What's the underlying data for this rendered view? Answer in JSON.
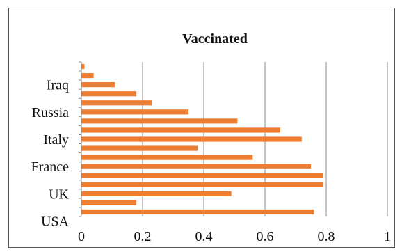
{
  "chart_data": {
    "type": "bar",
    "orientation": "horizontal",
    "title": "Vaccinated",
    "xlabel": "",
    "ylabel": "",
    "xlim": [
      0,
      1
    ],
    "xticks": [
      0,
      0.2,
      0.4,
      0.6,
      0.8,
      1
    ],
    "xtick_labels": [
      "0",
      "0.2",
      "0.4",
      "0.6",
      "0.8",
      "1"
    ],
    "grid": "vertical",
    "legend": "none",
    "bar_color": "#ED7D31",
    "y_labels": [
      {
        "label": "Iraq",
        "at_bar": 2
      },
      {
        "label": "Russia",
        "at_bar": 5
      },
      {
        "label": "Italy",
        "at_bar": 8
      },
      {
        "label": "France",
        "at_bar": 11
      },
      {
        "label": "UK",
        "at_bar": 14
      },
      {
        "label": "USA",
        "at_bar": 17
      }
    ],
    "values_top_to_bottom": [
      0.01,
      0.04,
      0.11,
      0.18,
      0.23,
      0.35,
      0.51,
      0.65,
      0.72,
      0.38,
      0.56,
      0.75,
      0.79,
      0.79,
      0.49,
      0.18,
      0.76
    ]
  }
}
